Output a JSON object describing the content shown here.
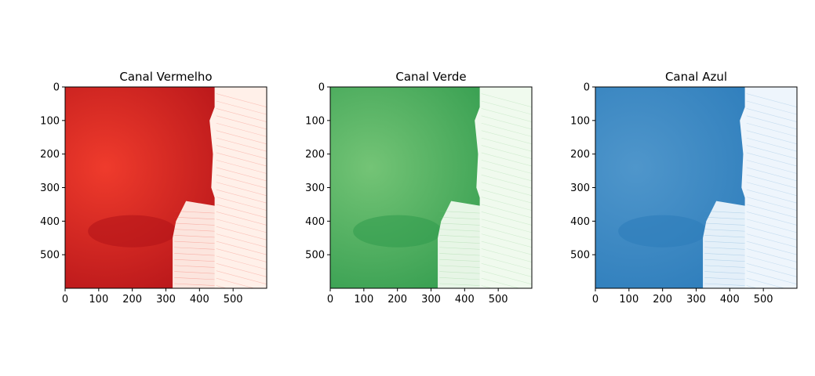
{
  "chart_data": [
    {
      "type": "heatmap",
      "title": "Canal Vermelho",
      "colormap": "Reds",
      "dark_color": "#b11218",
      "light_color": "#fff0e9",
      "mid_color": "#ef3b2c",
      "x_ticks": [
        0,
        100,
        200,
        300,
        400,
        500
      ],
      "y_ticks": [
        0,
        100,
        200,
        300,
        400,
        500
      ],
      "xlim": [
        0,
        600
      ],
      "ylim": [
        600,
        0
      ],
      "tick_labels_x": [
        "0",
        "100",
        "200",
        "300",
        "400",
        "500"
      ],
      "tick_labels_y": [
        "0",
        "100",
        "200",
        "300",
        "400",
        "500"
      ]
    },
    {
      "type": "heatmap",
      "title": "Canal Verde",
      "colormap": "Greens",
      "dark_color": "#2f9a4c",
      "light_color": "#f0faee",
      "mid_color": "#74c476",
      "x_ticks": [
        0,
        100,
        200,
        300,
        400,
        500
      ],
      "y_ticks": [
        0,
        100,
        200,
        300,
        400,
        500
      ],
      "xlim": [
        0,
        600
      ],
      "ylim": [
        600,
        0
      ],
      "tick_labels_x": [
        "0",
        "100",
        "200",
        "300",
        "400",
        "500"
      ],
      "tick_labels_y": [
        "0",
        "100",
        "200",
        "300",
        "400",
        "500"
      ]
    },
    {
      "type": "heatmap",
      "title": "Canal Azul",
      "colormap": "Blues",
      "dark_color": "#2b7bba",
      "light_color": "#eef5fc",
      "mid_color": "#4f96cb",
      "x_ticks": [
        0,
        100,
        200,
        300,
        400,
        500
      ],
      "y_ticks": [
        0,
        100,
        200,
        300,
        400,
        500
      ],
      "xlim": [
        0,
        600
      ],
      "ylim": [
        600,
        0
      ],
      "tick_labels_x": [
        "0",
        "100",
        "200",
        "300",
        "400",
        "500"
      ],
      "tick_labels_y": [
        "0",
        "100",
        "200",
        "300",
        "400",
        "500"
      ]
    }
  ]
}
